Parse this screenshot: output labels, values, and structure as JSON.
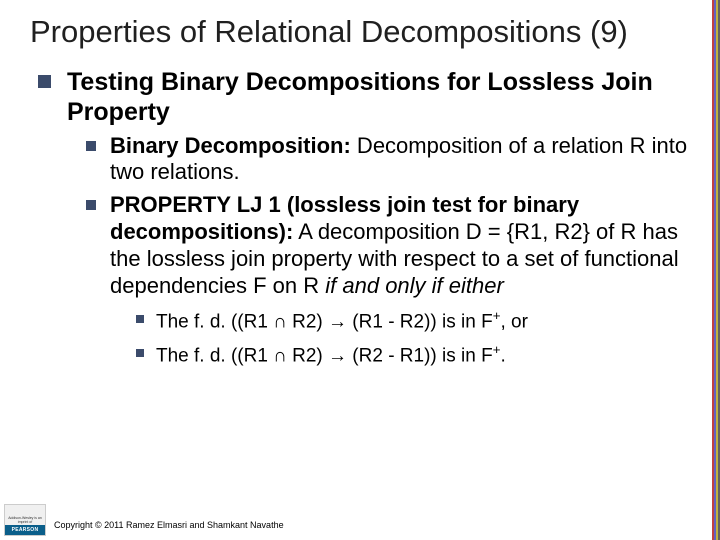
{
  "title": "Properties of Relational Decompositions (9)",
  "l1_text": "Testing Binary Decompositions for Lossless Join Property",
  "l2a_bold": "Binary Decomposition:",
  "l2a_rest": " Decomposition of a relation R into two relations.",
  "l2b_bold": "PROPERTY LJ 1 (lossless join test for binary decompositions):",
  "l2b_rest1": " A decomposition D = {R1, R2} of R has the lossless join property with respect to a set of functional dependencies F on R ",
  "l2b_ital": "if and only if either",
  "l3a_pre": "The f. d. ((R1 ∩ R2) ",
  "l3a_arrow": "→",
  "l3a_mid": " (R1 - R2)) is in F",
  "l3a_sup": "+",
  "l3a_post": ", or",
  "l3b_pre": "The f. d. ((R1 ∩ R2) ",
  "l3b_arrow": "→",
  "l3b_mid": " (R2 - R1)) is in F",
  "l3b_sup": "+",
  "l3b_post": ".",
  "pearson_top": "Addison-Wesley is an imprint of",
  "pearson_label": "PEARSON",
  "copyright": "Copyright © 2011 Ramez Elmasri and Shamkant Navathe",
  "colors": {
    "bullet": "#3b4b6b",
    "title": "#202020",
    "pearson_bar": "#0a5e8a"
  }
}
